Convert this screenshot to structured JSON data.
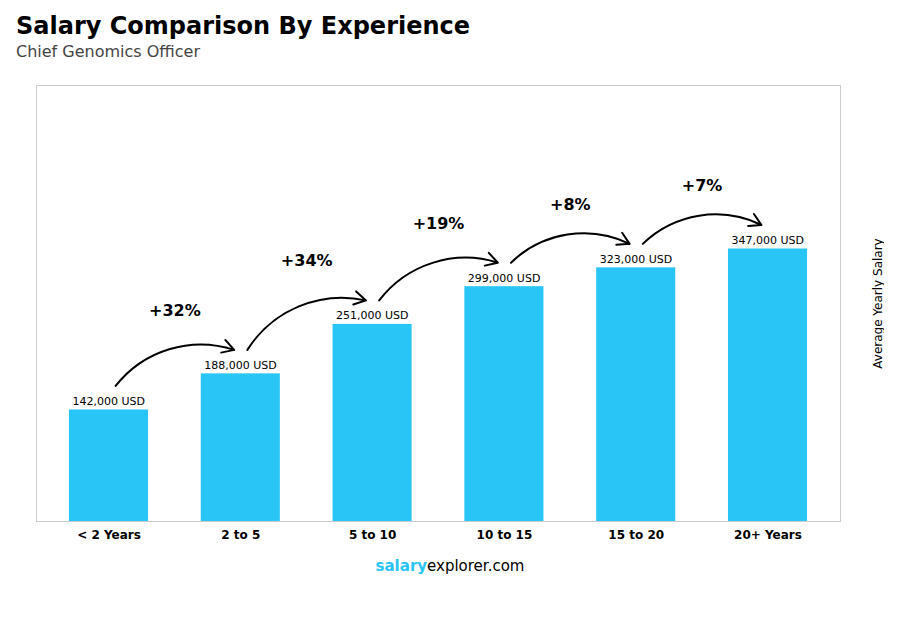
{
  "chart_data": {
    "type": "bar",
    "title": "Salary Comparison By Experience",
    "subtitle": "Chief Genomics Officer",
    "categories": [
      "< 2 Years",
      "2 to 5",
      "5 to 10",
      "10 to 15",
      "15 to 20",
      "20+ Years"
    ],
    "values": [
      142000,
      188000,
      251000,
      299000,
      323000,
      347000
    ],
    "value_labels": [
      "142,000 USD",
      "188,000 USD",
      "251,000 USD",
      "299,000 USD",
      "323,000 USD",
      "347,000 USD"
    ],
    "data_labels": true,
    "color": "#29c5f6",
    "ylabel": "Average Yearly Salary",
    "ylim": [
      0,
      555200
    ],
    "tick_labels": "x",
    "annotations": [
      "+32%",
      "+34%",
      "+19%",
      "+8%",
      "+7%"
    ],
    "footer": [
      "salary",
      "explorer.com"
    ]
  }
}
